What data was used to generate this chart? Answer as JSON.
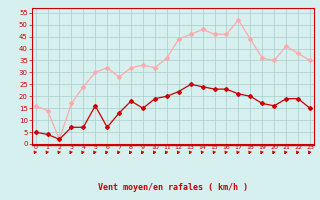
{
  "x": [
    0,
    1,
    2,
    3,
    4,
    5,
    6,
    7,
    8,
    9,
    10,
    11,
    12,
    13,
    14,
    15,
    16,
    17,
    18,
    19,
    20,
    21,
    22,
    23
  ],
  "moyen": [
    5,
    4,
    2,
    7,
    7,
    16,
    7,
    13,
    18,
    15,
    19,
    20,
    22,
    25,
    24,
    23,
    23,
    21,
    20,
    17,
    16,
    19,
    19,
    15
  ],
  "rafales": [
    16,
    14,
    2,
    17,
    24,
    30,
    32,
    28,
    32,
    33,
    32,
    36,
    44,
    46,
    48,
    46,
    46,
    52,
    44,
    36,
    35,
    41,
    38,
    35
  ],
  "moyen_color": "#cc0000",
  "rafales_color": "#ffaaaa",
  "bg_color": "#d6f0f0",
  "grid_color": "#aacccc",
  "xlabel": "Vent moyen/en rafales ( km/h )",
  "xlabel_color": "#cc0000",
  "tick_color": "#cc0000",
  "ylim": [
    0,
    57
  ],
  "yticks": [
    0,
    5,
    10,
    15,
    20,
    25,
    30,
    35,
    40,
    45,
    50,
    55
  ],
  "arrow_color": "#cc0000"
}
